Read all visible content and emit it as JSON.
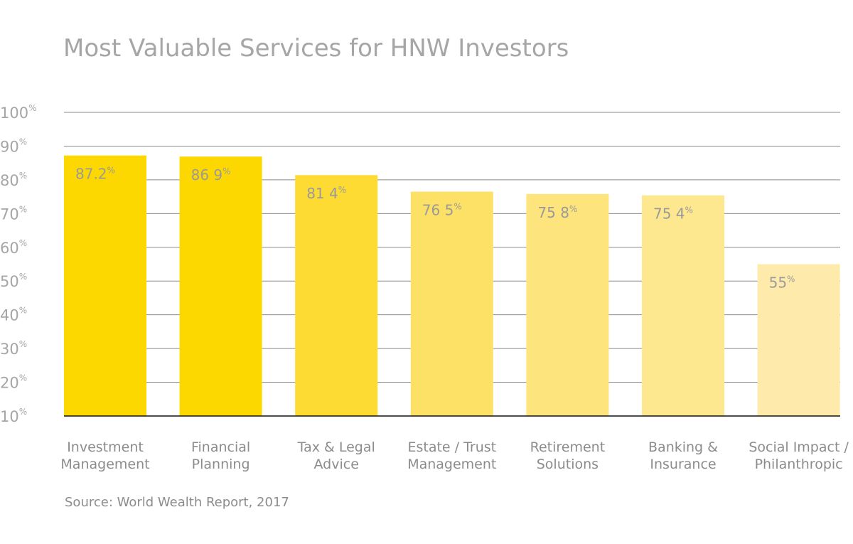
{
  "chart_data": {
    "type": "bar",
    "title": "Most Valuable Services for HNW Investors",
    "categories": [
      [
        "Investment",
        "Management"
      ],
      [
        "Financial",
        "Planning"
      ],
      [
        "Tax & Legal",
        "Advice"
      ],
      [
        "Estate / Trust",
        "Management"
      ],
      [
        "Retirement",
        "Solutions"
      ],
      [
        "Banking &",
        "Insurance"
      ],
      [
        "Social Impact /",
        "Philanthropic"
      ]
    ],
    "values": [
      87.2,
      86.9,
      81.4,
      76.5,
      75.8,
      75.4,
      55
    ],
    "value_labels": [
      "87.2",
      "86 9",
      "81 4",
      "76 5",
      "75 8",
      "75 4",
      "55"
    ],
    "value_label_unit": "%",
    "bar_colors": [
      "#fdd800",
      "#fdd800",
      "#fddb33",
      "#fde066",
      "#fde47d",
      "#fde78f",
      "#feebab"
    ],
    "y_ticks": [
      "100",
      "90",
      "80",
      "70",
      "60",
      "50",
      "40",
      "30",
      "20",
      "10"
    ],
    "y_tick_values": [
      100,
      90,
      80,
      70,
      60,
      50,
      40,
      30,
      20,
      10
    ],
    "y_tick_unit": "%",
    "ylim": [
      10,
      100
    ],
    "grid": true,
    "source": "Source: World Wealth Report, 2017"
  }
}
